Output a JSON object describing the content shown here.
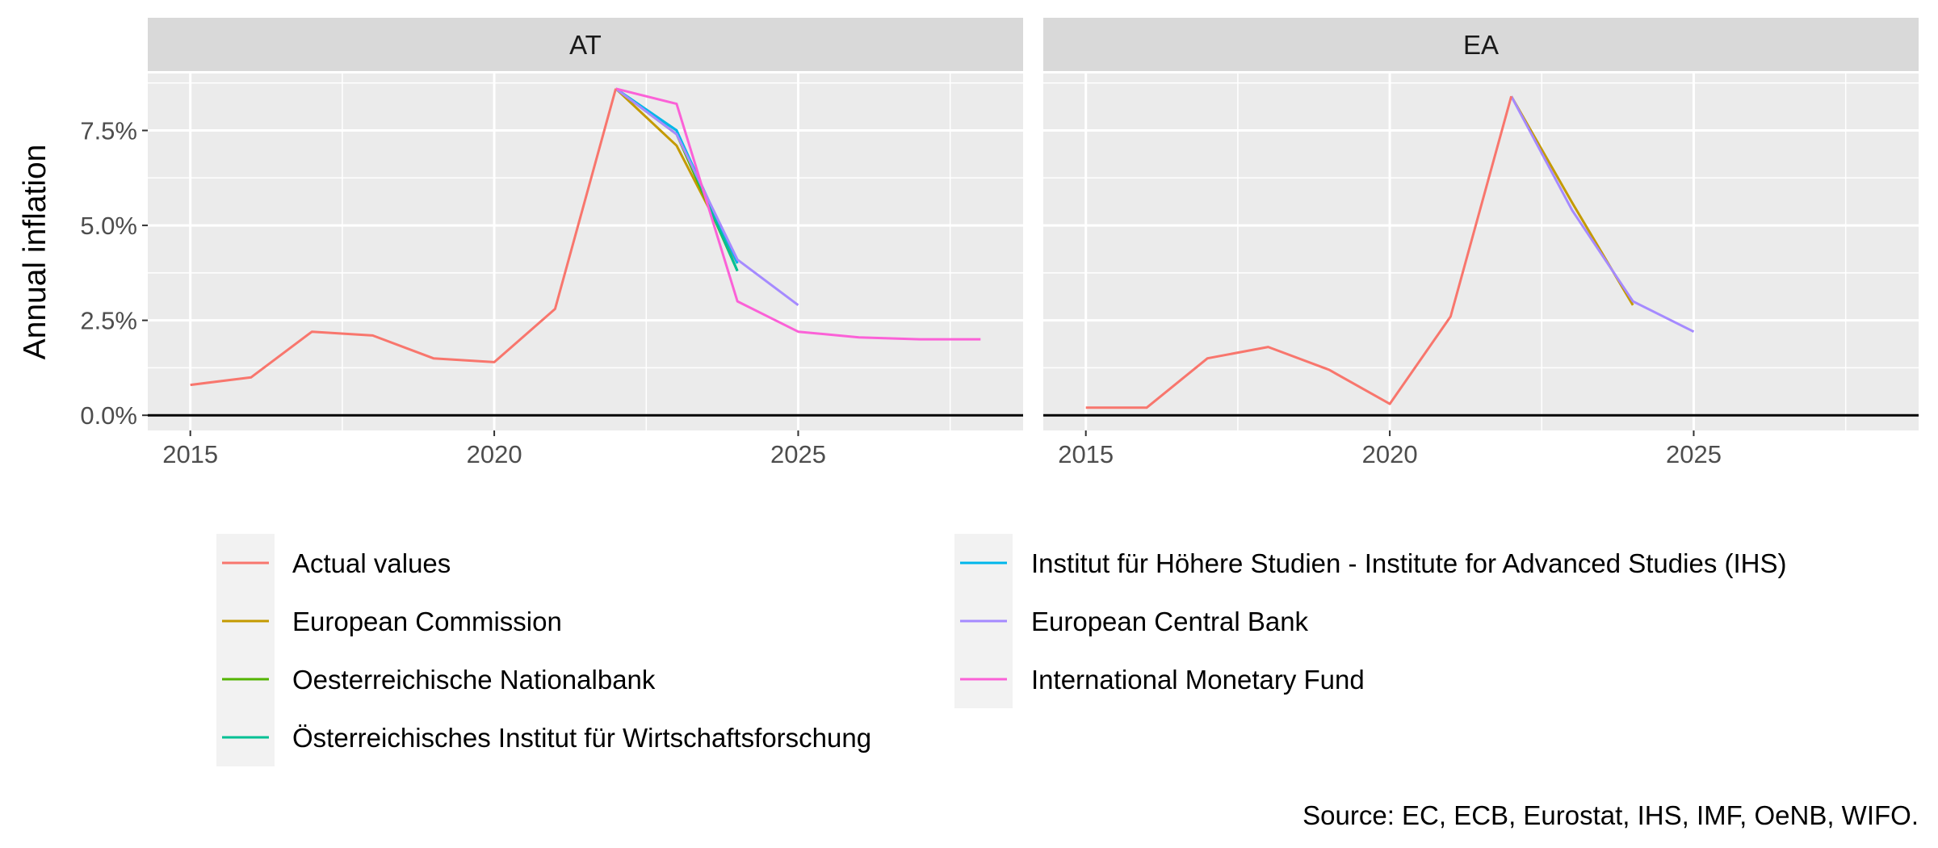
{
  "chart_data": {
    "type": "line",
    "ylabel": "Annual inflation",
    "caption": "Source: EC, ECB, Eurostat, IHS, IMF, OeNB, WIFO.",
    "xlim": [
      2014.3,
      2028.7
    ],
    "ylim": [
      -0.4,
      9.0
    ],
    "x_ticks": [
      2015,
      2020,
      2025
    ],
    "y_ticks": [
      0,
      2.5,
      5,
      7.5
    ],
    "y_tick_labels": [
      "0.0%",
      "2.5%",
      "5.0%",
      "7.5%"
    ],
    "grid": true,
    "legend_position": "bottom",
    "series": [
      {
        "name": "Actual values",
        "color": "#F8766D"
      },
      {
        "name": "European Commission",
        "color": "#C49A00"
      },
      {
        "name": "Oesterreichische Nationalbank",
        "color": "#53B400"
      },
      {
        "name": "Österreichisches Institut für Wirtschaftsforschung",
        "color": "#00C094"
      },
      {
        "name": "Institut für Höhere Studien - Institute for Advanced Studies (IHS)",
        "color": "#00B6EB"
      },
      {
        "name": "European Central Bank",
        "color": "#A58AFF"
      },
      {
        "name": "International Monetary Fund",
        "color": "#FB61D7"
      }
    ],
    "panels": [
      {
        "label": "AT",
        "lines": [
          {
            "series": "European Commission",
            "x": [
              2022,
              2023,
              2024
            ],
            "y": [
              8.6,
              7.1,
              4.0
            ]
          },
          {
            "series": "Oesterreichische Nationalbank",
            "x": [
              2022,
              2023,
              2024
            ],
            "y": [
              8.6,
              7.4,
              3.8
            ]
          },
          {
            "series": "Österreichisches Institut für Wirtschaftsforschung",
            "x": [
              2022,
              2023,
              2024
            ],
            "y": [
              8.6,
              7.5,
              3.8
            ]
          },
          {
            "series": "Institut für Höhere Studien - Institute for Advanced Studies (IHS)",
            "x": [
              2022,
              2023,
              2024
            ],
            "y": [
              8.6,
              7.5,
              4.0
            ]
          },
          {
            "series": "European Central Bank",
            "x": [
              2022,
              2023,
              2024,
              2025
            ],
            "y": [
              8.6,
              7.4,
              4.1,
              2.9
            ]
          },
          {
            "series": "International Monetary Fund",
            "x": [
              2022,
              2023,
              2024,
              2025,
              2026,
              2027,
              2028
            ],
            "y": [
              8.6,
              8.2,
              3.0,
              2.2,
              2.05,
              2.0,
              2.0
            ]
          },
          {
            "series": "Actual values",
            "x": [
              2015,
              2016,
              2017,
              2018,
              2019,
              2020,
              2021,
              2022
            ],
            "y": [
              0.8,
              1.0,
              2.2,
              2.1,
              1.5,
              1.4,
              2.8,
              8.6
            ]
          }
        ]
      },
      {
        "label": "EA",
        "lines": [
          {
            "series": "European Commission",
            "x": [
              2022,
              2023,
              2024
            ],
            "y": [
              8.4,
              5.6,
              2.9
            ]
          },
          {
            "series": "European Central Bank",
            "x": [
              2022,
              2023,
              2024,
              2025
            ],
            "y": [
              8.4,
              5.4,
              3.0,
              2.2
            ]
          },
          {
            "series": "Actual values",
            "x": [
              2015,
              2016,
              2017,
              2018,
              2019,
              2020,
              2021,
              2022
            ],
            "y": [
              0.2,
              0.2,
              1.5,
              1.8,
              1.2,
              0.3,
              2.6,
              8.4
            ]
          }
        ]
      }
    ]
  }
}
